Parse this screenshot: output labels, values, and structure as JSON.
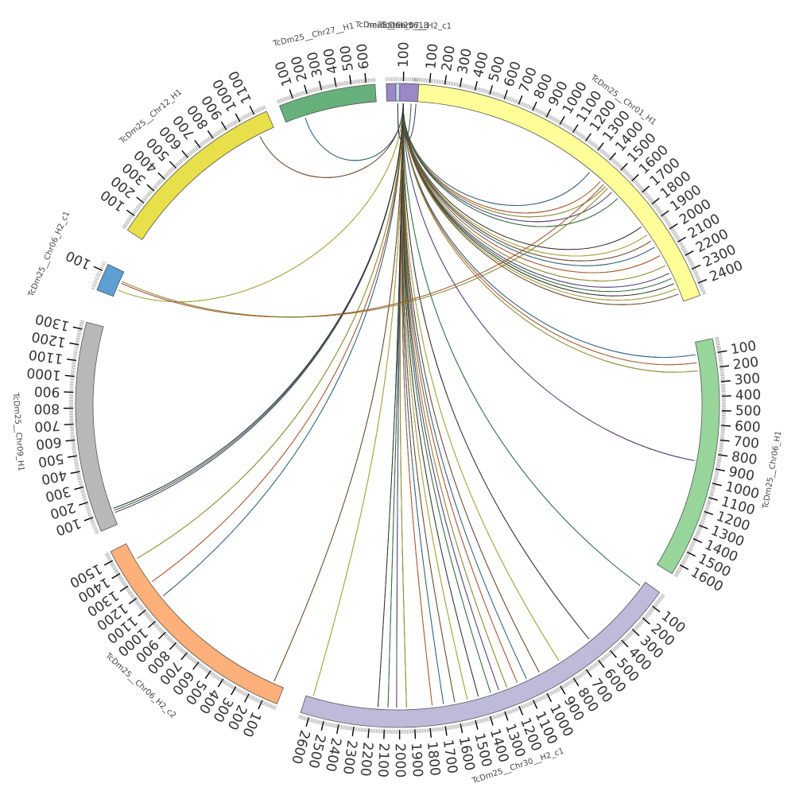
{
  "chromosomes": [
    {
      "id": "chrX",
      "label": "TcDm25__...",
      "length": 5,
      "color": "#a6cee3",
      "major_ticks": []
    },
    {
      "id": "chrA",
      "label": "TcDm25__Chr01_H1",
      "length": 2480,
      "color": "#ffff99",
      "major_ticks": [
        "100",
        "200",
        "300",
        "400",
        "500",
        "600",
        "700",
        "800",
        "900",
        "1000",
        "1100",
        "1200",
        "1300",
        "1400",
        "1500",
        "1600",
        "1700",
        "1800",
        "1900",
        "2000",
        "2100",
        "2200",
        "2300",
        "2400"
      ]
    },
    {
      "id": "chrB",
      "label": "TcDm25__Chr06_H1",
      "length": 1680,
      "color": "#98d59b",
      "major_ticks": [
        "100",
        "200",
        "300",
        "400",
        "500",
        "600",
        "700",
        "800",
        "900",
        "1000",
        "1100",
        "1200",
        "1300",
        "1400",
        "1500",
        "1600"
      ]
    },
    {
      "id": "chrC",
      "label": "TcDm25__Chr30__H2_c1",
      "length": 2660,
      "color": "#bebada",
      "major_ticks": [
        "100",
        "200",
        "300",
        "400",
        "500",
        "600",
        "700",
        "800",
        "900",
        "1000",
        "1100",
        "1200",
        "1300",
        "1400",
        "1500",
        "1600",
        "1700",
        "1800",
        "1900",
        "2000",
        "2100",
        "2200",
        "2300",
        "2400",
        "2500",
        "2600"
      ]
    },
    {
      "id": "chrD",
      "label": "TcDm25__Chr06_H2_c2",
      "length": 1560,
      "color": "#fdb07a",
      "major_ticks": [
        "100",
        "200",
        "300",
        "400",
        "500",
        "600",
        "700",
        "800",
        "900",
        "1000",
        "1100",
        "1200",
        "1300",
        "1400",
        "1500"
      ]
    },
    {
      "id": "chrE",
      "label": "TcDm25__Chr09_H1",
      "length": 1350,
      "color": "#b8b8b8",
      "major_ticks": [
        "100",
        "200",
        "300",
        "400",
        "500",
        "600",
        "700",
        "800",
        "900",
        "1000",
        "1100",
        "1200",
        "1300"
      ]
    },
    {
      "id": "chrF",
      "label": "TcDm25__Chr06_H2_c1",
      "length": 140,
      "color": "#5e9fd3",
      "major_ticks": [
        "100"
      ]
    },
    {
      "id": "chrG",
      "label": "TcDm25__Chr12_H1",
      "length": 1180,
      "color": "#e8e04a",
      "major_ticks": [
        "100",
        "200",
        "300",
        "400",
        "500",
        "600",
        "700",
        "800",
        "900",
        "1000",
        "1100"
      ]
    },
    {
      "id": "chrH",
      "label": "TcDm25__Chr27__H1",
      "length": 660,
      "color": "#66b07b",
      "major_ticks": [
        "100",
        "200",
        "300",
        "400",
        "500",
        "600"
      ]
    },
    {
      "id": "chrI",
      "label": "TcDm25__Chr07__H2_c1",
      "length": 190,
      "color": "#9b88c6",
      "major_ticks": [
        "100"
      ]
    },
    {
      "id": "chrJ",
      "label": "hereditae_c618",
      "length": 20,
      "color": "#c4d8ee",
      "major_ticks": []
    }
  ],
  "link_colors": [
    "#2d6a8f",
    "#c25a2c",
    "#9a9a2a",
    "#5a3f8a",
    "#2f7a3f",
    "#333333",
    "#b8b836",
    "#7a4a2a"
  ],
  "links": [
    {
      "from": [
        "chrX",
        2
      ],
      "to": [
        "chrA",
        1350
      ]
    },
    {
      "from": [
        "chrX",
        2
      ],
      "to": [
        "chrA",
        1450
      ]
    },
    {
      "from": [
        "chrX",
        2
      ],
      "to": [
        "chrA",
        1500
      ]
    },
    {
      "from": [
        "chrX",
        2
      ],
      "to": [
        "chrA",
        1560
      ]
    },
    {
      "from": [
        "chrX",
        2
      ],
      "to": [
        "chrA",
        1620
      ]
    },
    {
      "from": [
        "chrX",
        2
      ],
      "to": [
        "chrA",
        1880
      ]
    },
    {
      "from": [
        "chrX",
        2
      ],
      "to": [
        "chrA",
        1950
      ]
    },
    {
      "from": [
        "chrX",
        2
      ],
      "to": [
        "chrA",
        2000
      ]
    },
    {
      "from": [
        "chrX",
        2
      ],
      "to": [
        "chrA",
        2050
      ]
    },
    {
      "from": [
        "chrX",
        2
      ],
      "to": [
        "chrA",
        2120
      ]
    },
    {
      "from": [
        "chrX",
        2
      ],
      "to": [
        "chrA",
        2200
      ]
    },
    {
      "from": [
        "chrX",
        2
      ],
      "to": [
        "chrA",
        2260
      ]
    },
    {
      "from": [
        "chrX",
        2
      ],
      "to": [
        "chrA",
        2300
      ]
    },
    {
      "from": [
        "chrX",
        2
      ],
      "to": [
        "chrA",
        2340
      ]
    },
    {
      "from": [
        "chrX",
        2
      ],
      "to": [
        "chrA",
        2380
      ]
    },
    {
      "from": [
        "chrX",
        2
      ],
      "to": [
        "chrA",
        2420
      ]
    },
    {
      "from": [
        "chrX",
        2
      ],
      "to": [
        "chrB",
        90
      ]
    },
    {
      "from": [
        "chrX",
        2
      ],
      "to": [
        "chrB",
        150
      ]
    },
    {
      "from": [
        "chrX",
        2
      ],
      "to": [
        "chrB",
        210
      ]
    },
    {
      "from": [
        "chrX",
        2
      ],
      "to": [
        "chrB",
        870
      ]
    },
    {
      "from": [
        "chrX",
        2
      ],
      "to": [
        "chrC",
        40
      ]
    },
    {
      "from": [
        "chrX",
        2
      ],
      "to": [
        "chrC",
        560
      ]
    },
    {
      "from": [
        "chrX",
        2
      ],
      "to": [
        "chrC",
        820
      ]
    },
    {
      "from": [
        "chrX",
        2
      ],
      "to": [
        "chrC",
        980
      ]
    },
    {
      "from": [
        "chrX",
        2
      ],
      "to": [
        "chrC",
        1080
      ]
    },
    {
      "from": [
        "chrX",
        2
      ],
      "to": [
        "chrC",
        1150
      ]
    },
    {
      "from": [
        "chrX",
        2
      ],
      "to": [
        "chrC",
        1230
      ]
    },
    {
      "from": [
        "chrX",
        2
      ],
      "to": [
        "chrC",
        1290
      ]
    },
    {
      "from": [
        "chrX",
        2
      ],
      "to": [
        "chrC",
        1350
      ]
    },
    {
      "from": [
        "chrX",
        2
      ],
      "to": [
        "chrC",
        1440
      ]
    },
    {
      "from": [
        "chrX",
        2
      ],
      "to": [
        "chrC",
        1520
      ]
    },
    {
      "from": [
        "chrX",
        2
      ],
      "to": [
        "chrC",
        1610
      ]
    },
    {
      "from": [
        "chrX",
        2
      ],
      "to": [
        "chrC",
        1690
      ]
    },
    {
      "from": [
        "chrX",
        2
      ],
      "to": [
        "chrC",
        1770
      ]
    },
    {
      "from": [
        "chrX",
        2
      ],
      "to": [
        "chrC",
        1950
      ]
    },
    {
      "from": [
        "chrX",
        2
      ],
      "to": [
        "chrC",
        2020
      ]
    },
    {
      "from": [
        "chrX",
        2
      ],
      "to": [
        "chrC",
        2080
      ]
    },
    {
      "from": [
        "chrX",
        2
      ],
      "to": [
        "chrC",
        2150
      ]
    },
    {
      "from": [
        "chrX",
        2
      ],
      "to": [
        "chrC",
        2610
      ]
    },
    {
      "from": [
        "chrX",
        2
      ],
      "to": [
        "chrD",
        80
      ]
    },
    {
      "from": [
        "chrX",
        2
      ],
      "to": [
        "chrD",
        1100
      ]
    },
    {
      "from": [
        "chrX",
        2
      ],
      "to": [
        "chrD",
        1230
      ]
    },
    {
      "from": [
        "chrX",
        2
      ],
      "to": [
        "chrD",
        1430
      ]
    },
    {
      "from": [
        "chrX",
        2
      ],
      "to": [
        "chrE",
        80
      ]
    },
    {
      "from": [
        "chrX",
        2
      ],
      "to": [
        "chrE",
        95
      ]
    },
    {
      "from": [
        "chrX",
        2
      ],
      "to": [
        "chrE",
        110
      ]
    },
    {
      "from": [
        "chrX",
        2
      ],
      "to": [
        "chrF",
        40
      ]
    },
    {
      "from": [
        "chrX",
        2
      ],
      "to": [
        "chrG",
        1070
      ]
    },
    {
      "from": [
        "chrX",
        2
      ],
      "to": [
        "chrH",
        140
      ]
    },
    {
      "from": [
        "chrF",
        80
      ],
      "to": [
        "chrA",
        1480
      ]
    },
    {
      "from": [
        "chrF",
        90
      ],
      "to": [
        "chrA",
        1520
      ]
    },
    {
      "from": [
        "chrX",
        2
      ],
      "to": [
        "chrI",
        180
      ]
    },
    {
      "from": [
        "chrX",
        2
      ],
      "to": [
        "chrI",
        150
      ]
    },
    {
      "from": [
        "chrX",
        2
      ],
      "to": [
        "chrJ",
        10
      ]
    }
  ]
}
